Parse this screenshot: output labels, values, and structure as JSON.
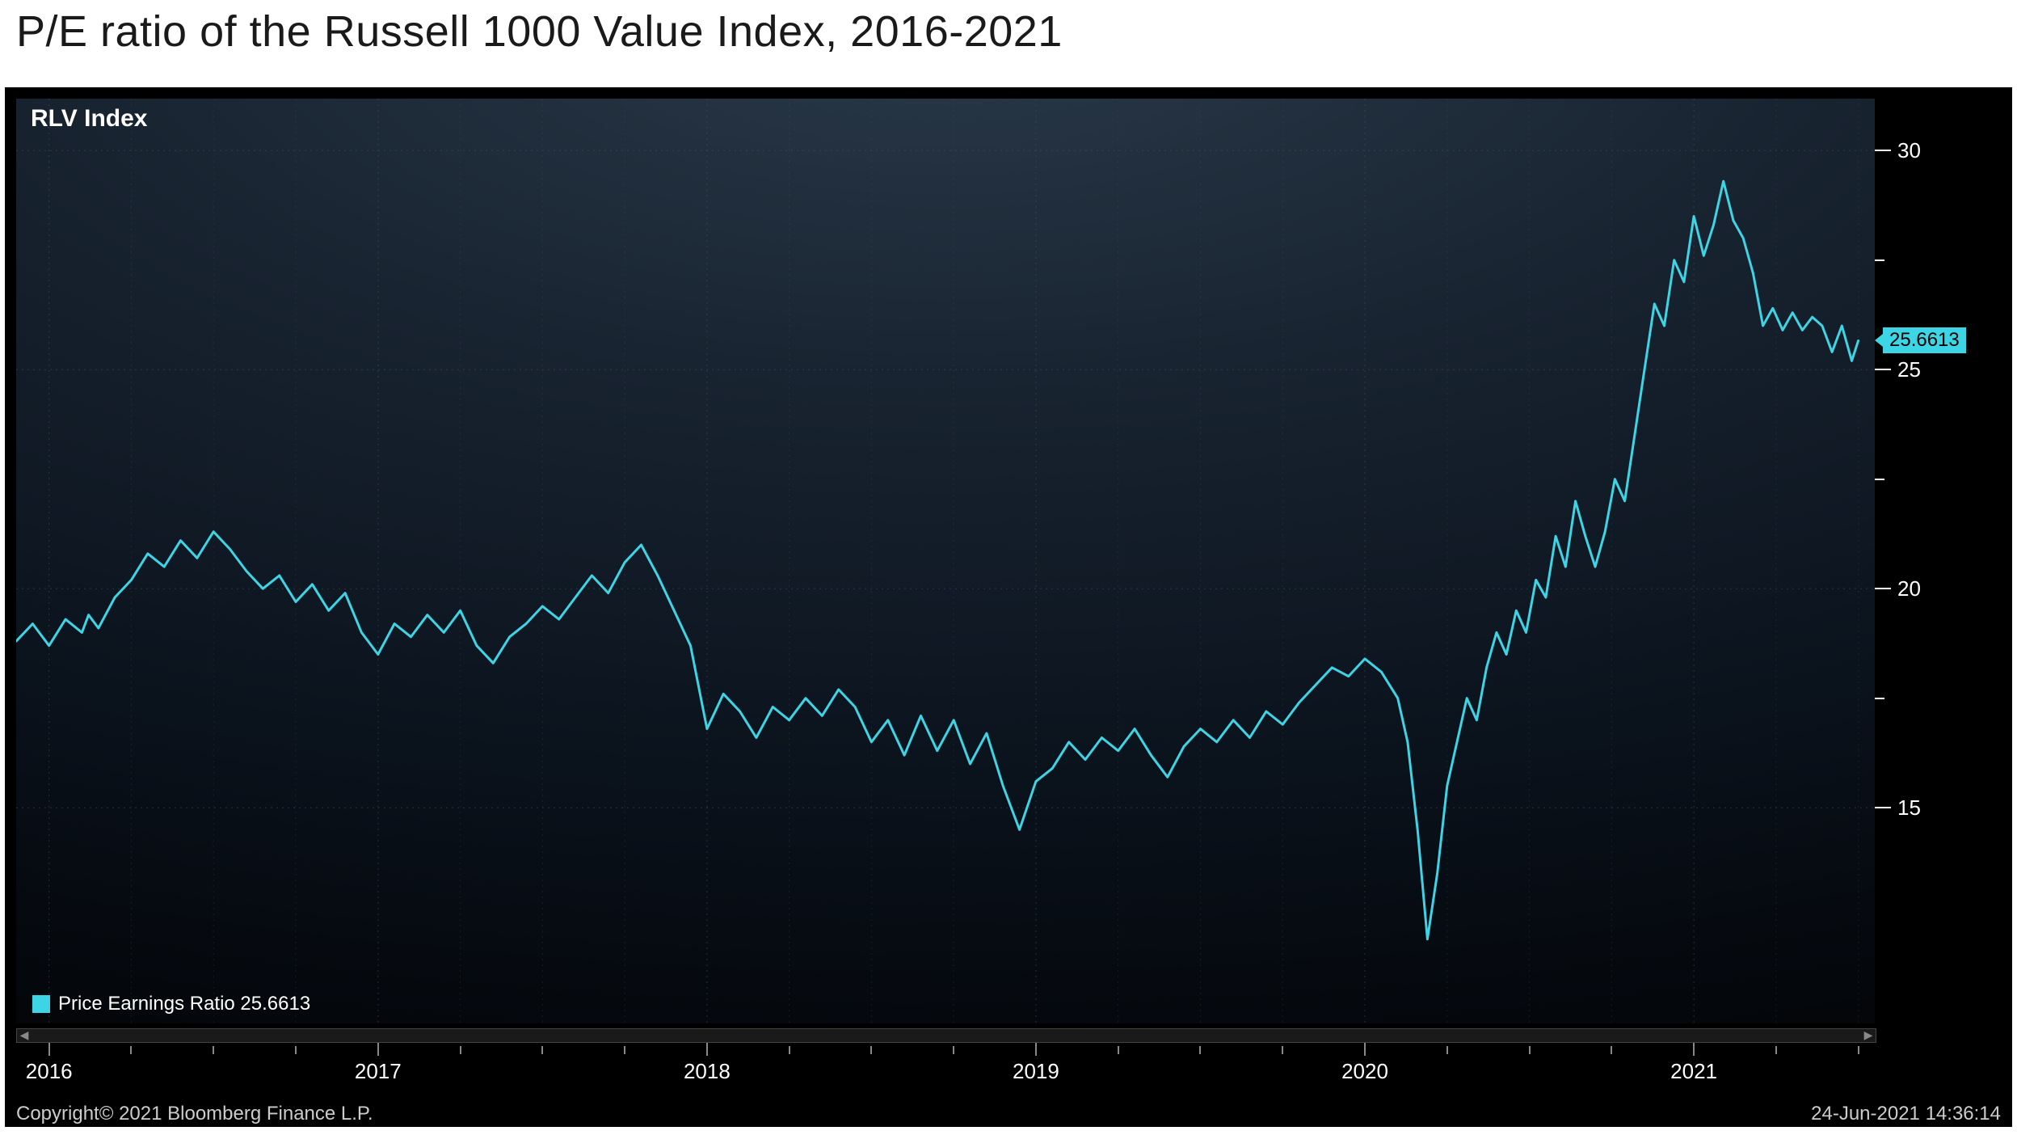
{
  "title": "P/E ratio of the Russell 1000 Value Index, 2016-2021",
  "chart": {
    "type": "line",
    "index_name": "RLV Index",
    "legend_label": "Price Earnings Ratio 25.6613",
    "line_color": "#3dd5e6",
    "line_width": 3,
    "background_gradient_top": "#2a3a4a",
    "background_gradient_bottom": "#030508",
    "grid_color": "#4a5560",
    "grid_dash": "2,5",
    "axis_text_color": "#ffffff",
    "last_value": "25.6613",
    "last_value_badge_bg": "#3dd5e6",
    "last_value_badge_fg": "#000000",
    "x_domain_start": 2015.9,
    "x_domain_end": 2021.55,
    "y_domain_min": 11,
    "y_domain_max": 31,
    "y_ticks": [
      15,
      20,
      25,
      30
    ],
    "x_ticks": [
      {
        "pos": 2016,
        "label": "2016"
      },
      {
        "pos": 2017,
        "label": "2017"
      },
      {
        "pos": 2018,
        "label": "2018"
      },
      {
        "pos": 2019,
        "label": "2019"
      },
      {
        "pos": 2020,
        "label": "2020"
      },
      {
        "pos": 2021,
        "label": "2021"
      }
    ],
    "x_minor_ticks_per_year": 3,
    "series": [
      [
        2015.9,
        18.8
      ],
      [
        2015.95,
        19.2
      ],
      [
        2016.0,
        18.7
      ],
      [
        2016.05,
        19.3
      ],
      [
        2016.1,
        19.0
      ],
      [
        2016.12,
        19.4
      ],
      [
        2016.15,
        19.1
      ],
      [
        2016.2,
        19.8
      ],
      [
        2016.25,
        20.2
      ],
      [
        2016.3,
        20.8
      ],
      [
        2016.35,
        20.5
      ],
      [
        2016.4,
        21.1
      ],
      [
        2016.45,
        20.7
      ],
      [
        2016.5,
        21.3
      ],
      [
        2016.55,
        20.9
      ],
      [
        2016.6,
        20.4
      ],
      [
        2016.65,
        20.0
      ],
      [
        2016.7,
        20.3
      ],
      [
        2016.75,
        19.7
      ],
      [
        2016.8,
        20.1
      ],
      [
        2016.85,
        19.5
      ],
      [
        2016.9,
        19.9
      ],
      [
        2016.95,
        19.0
      ],
      [
        2017.0,
        18.5
      ],
      [
        2017.05,
        19.2
      ],
      [
        2017.1,
        18.9
      ],
      [
        2017.15,
        19.4
      ],
      [
        2017.2,
        19.0
      ],
      [
        2017.25,
        19.5
      ],
      [
        2017.3,
        18.7
      ],
      [
        2017.35,
        18.3
      ],
      [
        2017.4,
        18.9
      ],
      [
        2017.45,
        19.2
      ],
      [
        2017.5,
        19.6
      ],
      [
        2017.55,
        19.3
      ],
      [
        2017.6,
        19.8
      ],
      [
        2017.65,
        20.3
      ],
      [
        2017.7,
        19.9
      ],
      [
        2017.75,
        20.6
      ],
      [
        2017.8,
        21.0
      ],
      [
        2017.85,
        20.3
      ],
      [
        2017.9,
        19.5
      ],
      [
        2017.95,
        18.7
      ],
      [
        2018.0,
        16.8
      ],
      [
        2018.05,
        17.6
      ],
      [
        2018.1,
        17.2
      ],
      [
        2018.15,
        16.6
      ],
      [
        2018.2,
        17.3
      ],
      [
        2018.25,
        17.0
      ],
      [
        2018.3,
        17.5
      ],
      [
        2018.35,
        17.1
      ],
      [
        2018.4,
        17.7
      ],
      [
        2018.45,
        17.3
      ],
      [
        2018.5,
        16.5
      ],
      [
        2018.55,
        17.0
      ],
      [
        2018.6,
        16.2
      ],
      [
        2018.65,
        17.1
      ],
      [
        2018.7,
        16.3
      ],
      [
        2018.75,
        17.0
      ],
      [
        2018.8,
        16.0
      ],
      [
        2018.85,
        16.7
      ],
      [
        2018.9,
        15.5
      ],
      [
        2018.95,
        14.5
      ],
      [
        2019.0,
        15.6
      ],
      [
        2019.05,
        15.9
      ],
      [
        2019.1,
        16.5
      ],
      [
        2019.15,
        16.1
      ],
      [
        2019.2,
        16.6
      ],
      [
        2019.25,
        16.3
      ],
      [
        2019.3,
        16.8
      ],
      [
        2019.35,
        16.2
      ],
      [
        2019.4,
        15.7
      ],
      [
        2019.45,
        16.4
      ],
      [
        2019.5,
        16.8
      ],
      [
        2019.55,
        16.5
      ],
      [
        2019.6,
        17.0
      ],
      [
        2019.65,
        16.6
      ],
      [
        2019.7,
        17.2
      ],
      [
        2019.75,
        16.9
      ],
      [
        2019.8,
        17.4
      ],
      [
        2019.85,
        17.8
      ],
      [
        2019.9,
        18.2
      ],
      [
        2019.95,
        18.0
      ],
      [
        2020.0,
        18.4
      ],
      [
        2020.05,
        18.1
      ],
      [
        2020.1,
        17.5
      ],
      [
        2020.13,
        16.5
      ],
      [
        2020.16,
        14.5
      ],
      [
        2020.19,
        12.0
      ],
      [
        2020.22,
        13.5
      ],
      [
        2020.25,
        15.5
      ],
      [
        2020.28,
        16.5
      ],
      [
        2020.31,
        17.5
      ],
      [
        2020.34,
        17.0
      ],
      [
        2020.37,
        18.2
      ],
      [
        2020.4,
        19.0
      ],
      [
        2020.43,
        18.5
      ],
      [
        2020.46,
        19.5
      ],
      [
        2020.49,
        19.0
      ],
      [
        2020.52,
        20.2
      ],
      [
        2020.55,
        19.8
      ],
      [
        2020.58,
        21.2
      ],
      [
        2020.61,
        20.5
      ],
      [
        2020.64,
        22.0
      ],
      [
        2020.67,
        21.2
      ],
      [
        2020.7,
        20.5
      ],
      [
        2020.73,
        21.3
      ],
      [
        2020.76,
        22.5
      ],
      [
        2020.79,
        22.0
      ],
      [
        2020.82,
        23.5
      ],
      [
        2020.85,
        25.0
      ],
      [
        2020.88,
        26.5
      ],
      [
        2020.91,
        26.0
      ],
      [
        2020.94,
        27.5
      ],
      [
        2020.97,
        27.0
      ],
      [
        2021.0,
        28.5
      ],
      [
        2021.03,
        27.6
      ],
      [
        2021.06,
        28.3
      ],
      [
        2021.09,
        29.3
      ],
      [
        2021.12,
        28.4
      ],
      [
        2021.15,
        28.0
      ],
      [
        2021.18,
        27.2
      ],
      [
        2021.21,
        26.0
      ],
      [
        2021.24,
        26.4
      ],
      [
        2021.27,
        25.9
      ],
      [
        2021.3,
        26.3
      ],
      [
        2021.33,
        25.9
      ],
      [
        2021.36,
        26.2
      ],
      [
        2021.39,
        26.0
      ],
      [
        2021.42,
        25.4
      ],
      [
        2021.45,
        26.0
      ],
      [
        2021.48,
        25.2
      ],
      [
        2021.5,
        25.66
      ]
    ]
  },
  "footer": {
    "copyright": "Copyright© 2021 Bloomberg Finance L.P.",
    "timestamp": "24-Jun-2021 14:36:14"
  }
}
